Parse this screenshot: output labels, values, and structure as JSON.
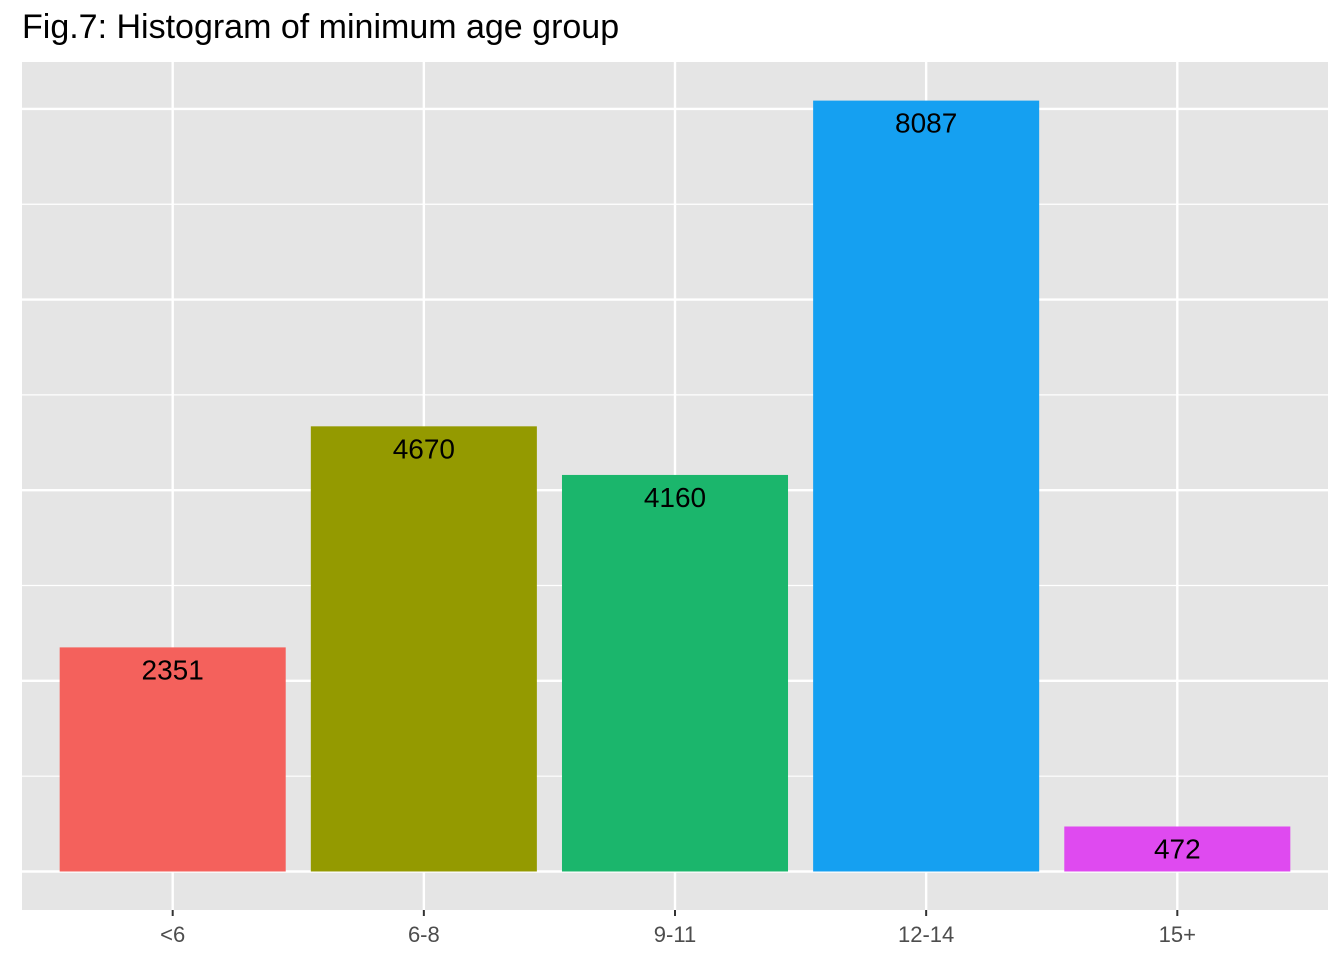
{
  "chart_data": {
    "type": "bar",
    "title": "Fig.7: Histogram of minimum age group",
    "xlabel": "",
    "ylabel": "",
    "categories": [
      "<6",
      "6-8",
      "9-11",
      "12-14",
      "15+"
    ],
    "values": [
      2351,
      4670,
      4160,
      8087,
      472
    ],
    "data_labels": [
      "2351",
      "4670",
      "4160",
      "8087",
      "472"
    ],
    "colors": [
      "#F4615C",
      "#949A00",
      "#1BB66C",
      "#15A0F1",
      "#DF4AF0"
    ],
    "ylim": [
      -404,
      8492
    ],
    "y_gridlines_major": [
      0,
      2000,
      4000,
      6000,
      8000
    ],
    "y_gridlines_minor": [
      1000,
      3000,
      5000,
      7000
    ],
    "y_tick_labels_shown": false,
    "grid": true,
    "legend": "none",
    "panel_background": "#E5E5E5"
  }
}
